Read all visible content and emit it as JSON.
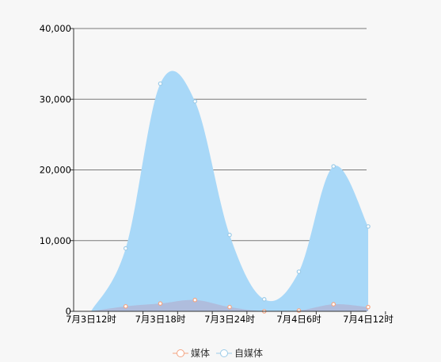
{
  "chart_data": {
    "type": "area",
    "title": "",
    "xlabel": "",
    "ylabel": "",
    "x_tick_labels": [
      "7月3日12时",
      "7月3日18时",
      "7月3日24时",
      "7月4日6时",
      "7月4日12时"
    ],
    "x_points": [
      "7月3日12时",
      "7月3日15时",
      "7月3日18时",
      "7月3日21时",
      "7月3日24时",
      "7月4日3时",
      "7月4日6时",
      "7月4日9时",
      "7月4日12时"
    ],
    "y_ticks": [
      0,
      10000,
      20000,
      30000,
      40000
    ],
    "y_tick_labels": [
      "0",
      "10,000",
      "20,000",
      "30,000",
      "40,000"
    ],
    "ylim": [
      0,
      40000
    ],
    "grid": true,
    "legend_position": "bottom",
    "series": [
      {
        "name": "自媒体",
        "color": "#a8d8f8",
        "line_color": "#9ccbe8",
        "values": [
          0,
          8900,
          32200,
          29700,
          10800,
          1700,
          5600,
          20500,
          12000
        ]
      },
      {
        "name": "媒体",
        "color": "#b0b8d8",
        "line_color": "#f4a482",
        "values": [
          0,
          700,
          1100,
          1600,
          600,
          0,
          100,
          1000,
          600
        ]
      }
    ]
  },
  "legend": {
    "items": [
      {
        "label": "媒体",
        "icon": "circle-outline-orange"
      },
      {
        "label": "自媒体",
        "icon": "circle-outline-blue"
      }
    ]
  }
}
